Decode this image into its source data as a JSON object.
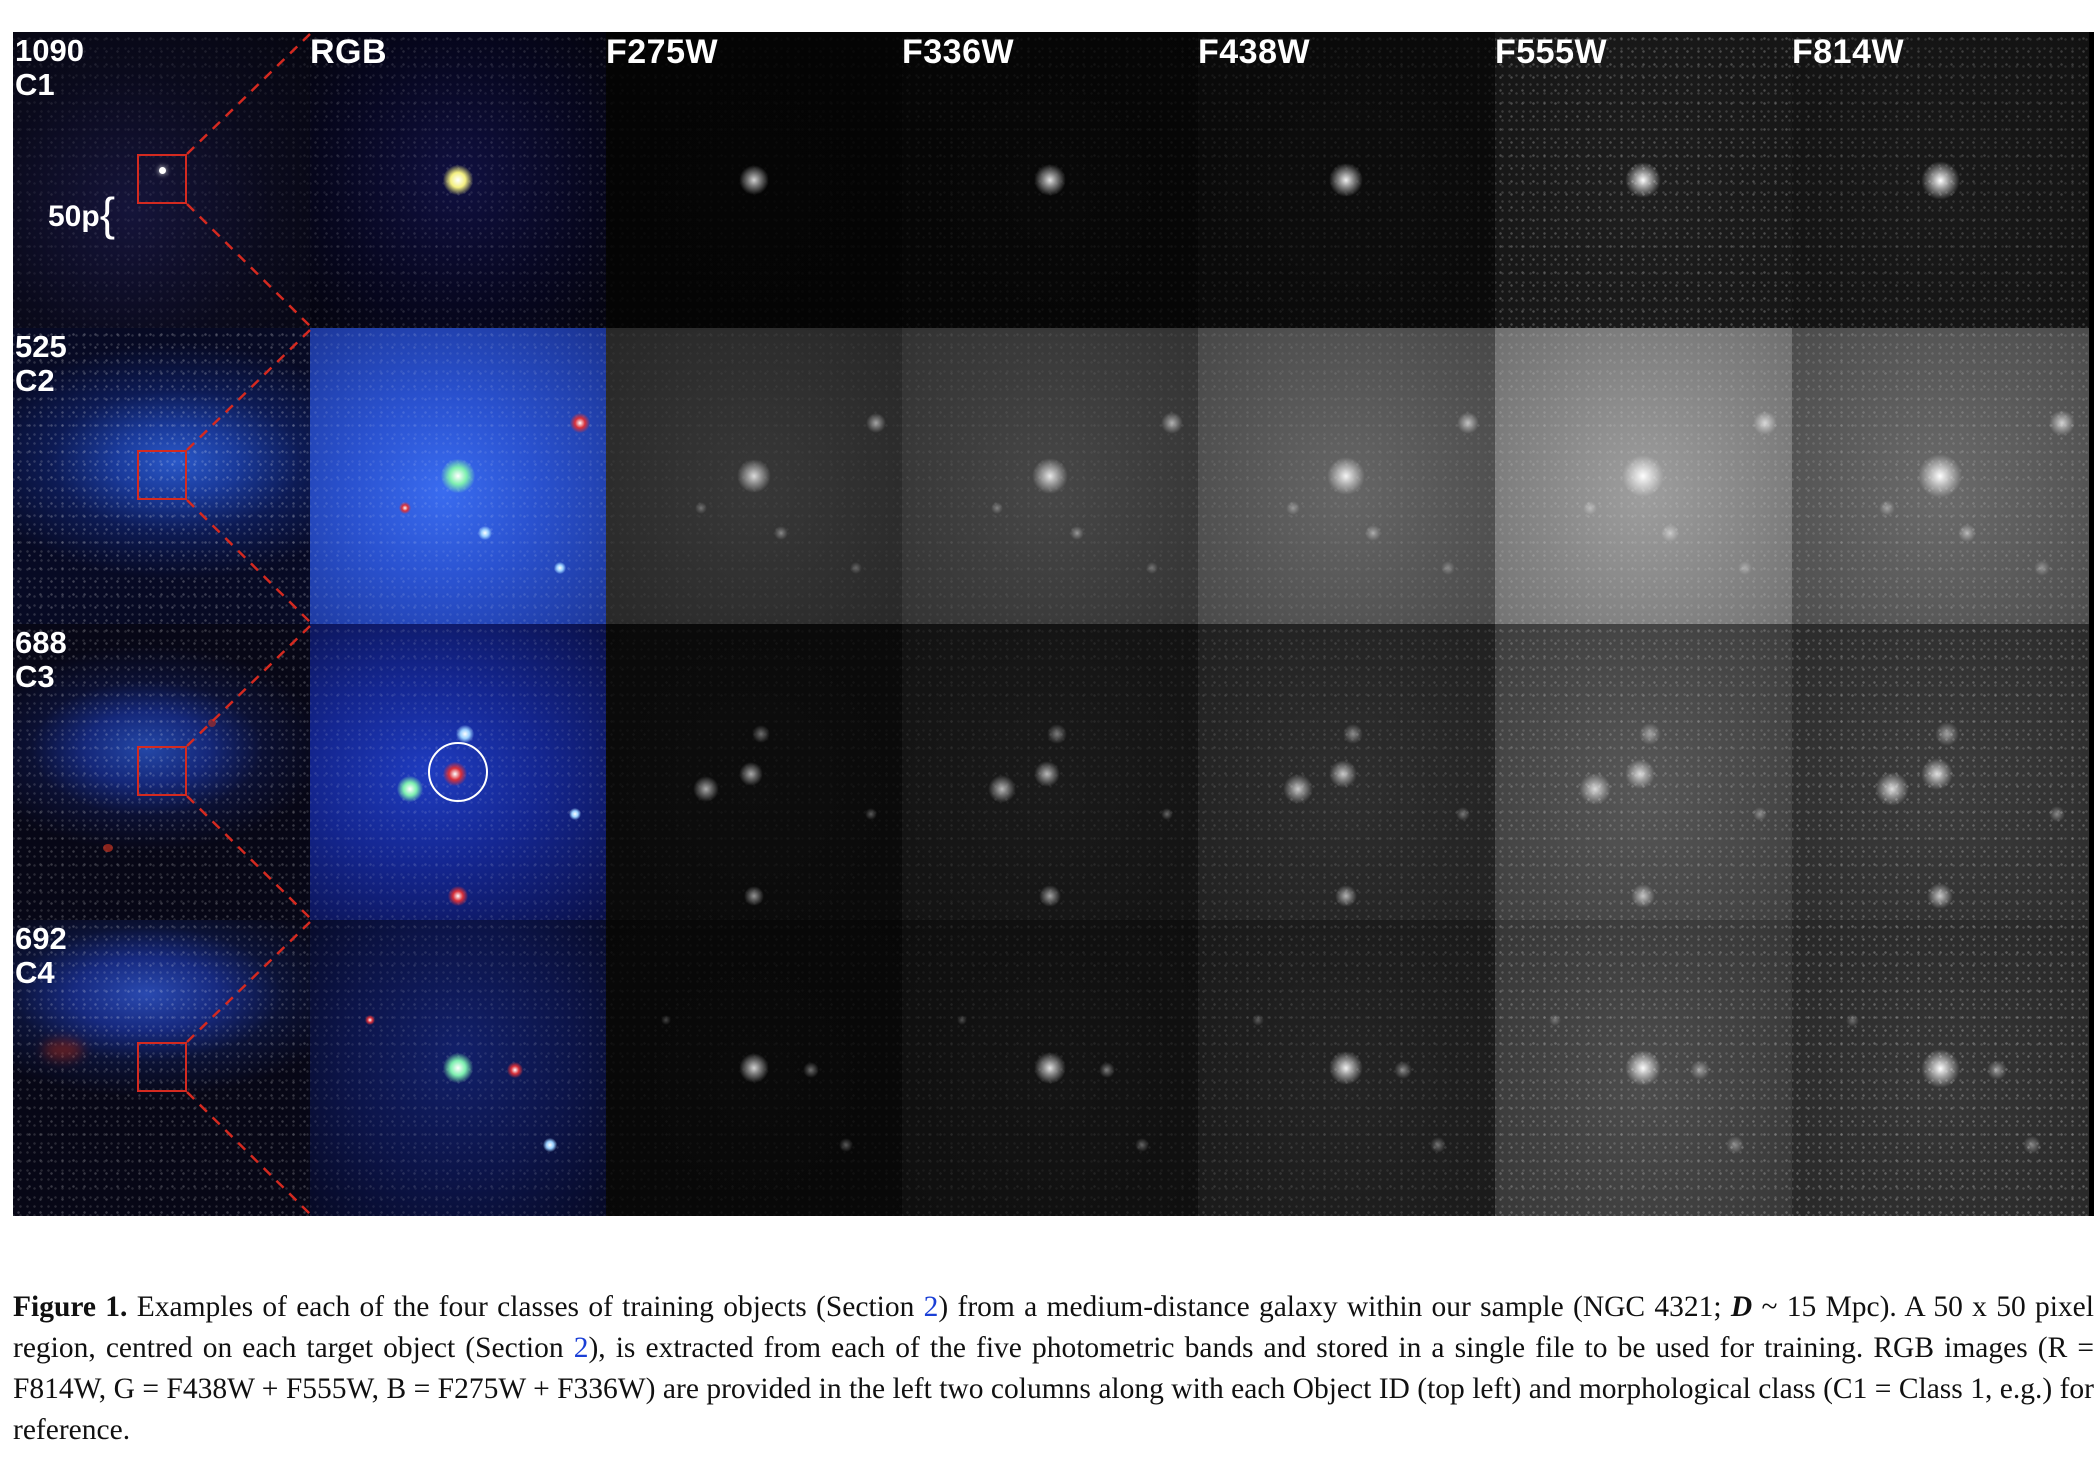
{
  "figure": {
    "bands": [
      "RGB",
      "F275W",
      "F336W",
      "F438W",
      "F555W",
      "F814W"
    ],
    "rows": [
      {
        "id": "1090",
        "cls": "C1"
      },
      {
        "id": "525",
        "cls": "C2"
      },
      {
        "id": "688",
        "cls": "C3"
      },
      {
        "id": "692",
        "cls": "C4"
      }
    ],
    "scale_label": "50p",
    "colors": {
      "zoom_box": "#d42a20",
      "ref_link": "#1a3fd6"
    }
  },
  "caption": {
    "label": "Figure 1.",
    "part1": " Examples of each of the four classes of training objects (Section ",
    "ref1": "2",
    "part2": ") from a medium-distance galaxy within our sample (NGC 4321; ",
    "dvar": "D",
    "part3": " ~ 15 Mpc). A 50 x 50 pixel region, centred on each target object (Section ",
    "ref2": "2",
    "part4": "), is extracted from each of the five photometric bands and stored in a single file to be used for training. RGB images (R = F814W, G = F438W + F555W, B = F275W + F336W) are provided in the left two columns along with each Object ID (top left) and morphological class (C1 = Class 1, e.g.) for reference."
  }
}
